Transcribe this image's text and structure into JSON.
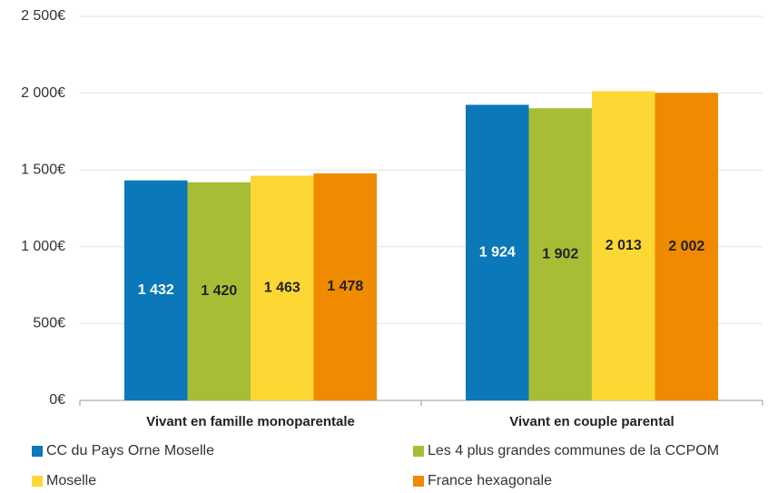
{
  "chart_data": {
    "type": "bar",
    "categories": [
      "Vivant en famille monoparentale",
      "Vivant en couple parental"
    ],
    "series": [
      {
        "name": "CC du Pays Orne Moselle",
        "color": "#0a78b9",
        "values": [
          1432,
          1924
        ],
        "value_labels": [
          "1 432",
          "1 924"
        ]
      },
      {
        "name": "Les 4 plus grandes communes de la CCPOM",
        "color": "#a8bd36",
        "values": [
          1420,
          1902
        ],
        "value_labels": [
          "1 420",
          "1 902"
        ]
      },
      {
        "name": "Moselle",
        "color": "#fdd835",
        "values": [
          1463,
          2013
        ],
        "value_labels": [
          "1 463",
          "2 013"
        ]
      },
      {
        "name": "France hexagonale",
        "color": "#f08a00",
        "values": [
          1478,
          2002
        ],
        "value_labels": [
          "1 478",
          "2 002"
        ]
      }
    ],
    "ylim": [
      0,
      2500
    ],
    "yticks": [
      {
        "value": 0,
        "label": "0€"
      },
      {
        "value": 500,
        "label": "500€"
      },
      {
        "value": 1000,
        "label": "1 000€"
      },
      {
        "value": 1500,
        "label": "1 500€"
      },
      {
        "value": 2000,
        "label": "2 000€"
      },
      {
        "value": 2500,
        "label": "2 500€"
      }
    ],
    "grid": true,
    "legend": "bottom"
  }
}
